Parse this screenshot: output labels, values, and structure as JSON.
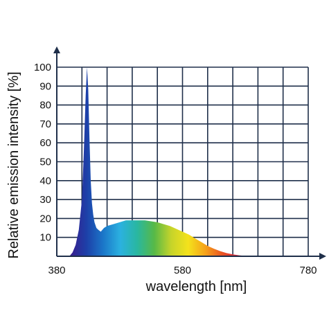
{
  "chart_data": {
    "type": "area",
    "title": "",
    "xlabel": "wavelength [nm]",
    "ylabel": "Relative emission intensity [%]",
    "xlim": [
      380,
      780
    ],
    "ylim": [
      0,
      100
    ],
    "x_tick_labels": [
      "380",
      "580",
      "780"
    ],
    "y_tick_labels": [
      "10",
      "20",
      "30",
      "40",
      "50",
      "60",
      "70",
      "80",
      "90",
      "100"
    ],
    "grid": true,
    "series": [
      {
        "x": [
          400,
          405,
          410,
          415,
          420,
          423,
          426,
          428,
          430,
          432,
          434,
          436,
          438,
          440,
          443,
          446,
          450,
          455,
          460,
          470,
          480,
          490,
          500,
          510,
          520,
          530,
          540,
          550,
          560,
          570,
          580,
          590,
          600,
          610,
          620,
          630,
          640,
          650,
          660,
          670,
          680,
          690,
          700
        ],
        "y": [
          0,
          2,
          6,
          14,
          30,
          55,
          85,
          100,
          88,
          62,
          40,
          28,
          22,
          18,
          15,
          14,
          13,
          15,
          16,
          17,
          18,
          19,
          19,
          19,
          19,
          18.5,
          18,
          17,
          16,
          14.5,
          13,
          11.5,
          9.5,
          7.5,
          5.5,
          4,
          2.7,
          1.7,
          1,
          0.5,
          0.2,
          0,
          0
        ]
      }
    ]
  },
  "colors": {
    "grid": "#1f2f4a",
    "axis": "#1f2f4a",
    "spectrum": [
      "#3a1c8c",
      "#1d3fa8",
      "#1b77c9",
      "#2bb1e0",
      "#29b7a0",
      "#57b947",
      "#c6d42a",
      "#f4e21c",
      "#f5a319",
      "#ea5422",
      "#d81f3c"
    ]
  }
}
